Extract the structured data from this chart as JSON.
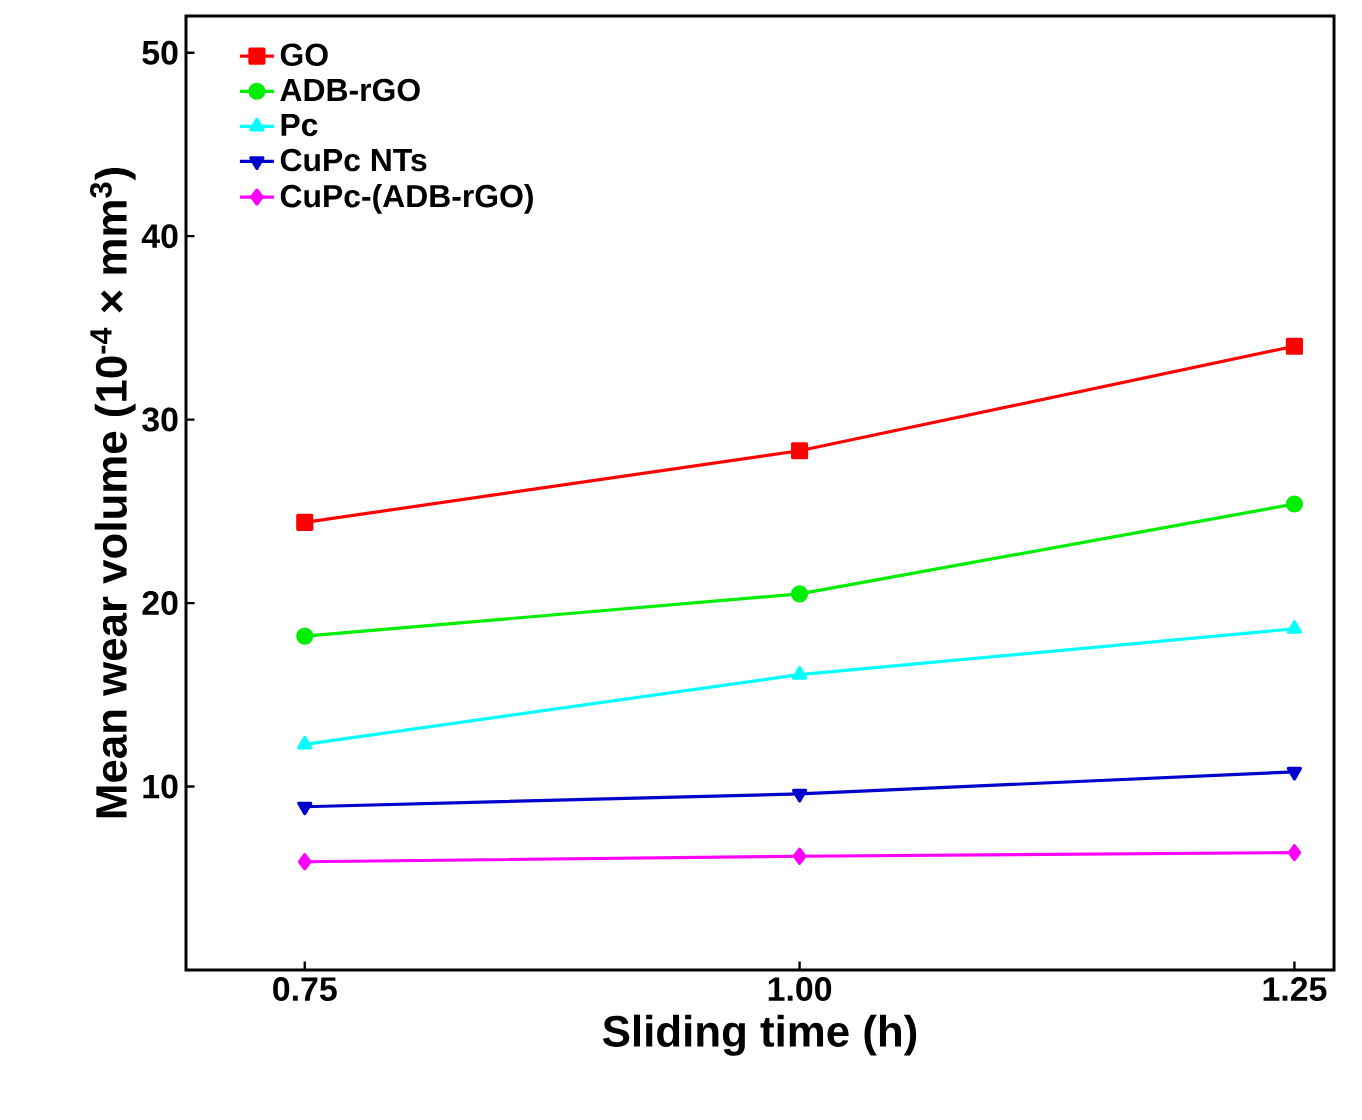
{
  "chart_data": {
    "type": "line",
    "xlabel": "Sliding time (h)",
    "ylabel": "Mean wear volume (10$^{-4}$ × mm$^{3}$)",
    "x": [
      0.75,
      1.0,
      1.25
    ],
    "xlim": [
      0.69,
      1.27
    ],
    "xticks": [
      {
        "value": 0.75,
        "label": "0.75"
      },
      {
        "value": 1.0,
        "label": "1.00"
      },
      {
        "value": 1.25,
        "label": "1.25"
      }
    ],
    "ylim": [
      0,
      52
    ],
    "yticks": [
      10,
      20,
      30,
      40,
      50
    ],
    "legend": "top left",
    "grid": false,
    "line_style": "solid",
    "series": [
      {
        "name": "GO",
        "color": "#ff0000",
        "marker": "square",
        "values": [
          24.4,
          28.3,
          34.0
        ]
      },
      {
        "name": "ADB-rGO",
        "color": "#00ee00",
        "marker": "circle",
        "values": [
          18.2,
          20.5,
          25.4
        ]
      },
      {
        "name": "Pc",
        "color": "#00ffff",
        "marker": "triangle",
        "values": [
          12.3,
          16.1,
          18.6
        ]
      },
      {
        "name": "CuPc NTs",
        "color": "#0000cc",
        "marker": "triangle down",
        "values": [
          8.9,
          9.6,
          10.8
        ]
      },
      {
        "name": "CuPc-(ADB-rGO)",
        "color": "#ff00ff",
        "marker": "diamond",
        "values": [
          5.9,
          6.2,
          6.4
        ]
      }
    ]
  }
}
